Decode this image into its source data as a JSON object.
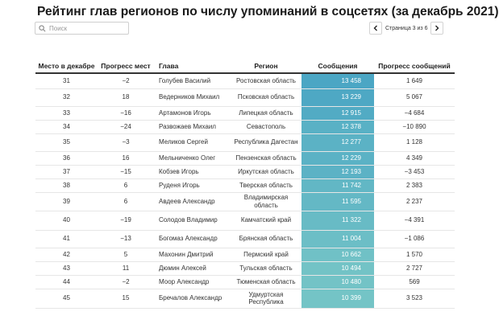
{
  "title": "Рейтинг глав регионов по числу упоминаний в соцсетях (за декабрь 2021)",
  "search": {
    "placeholder": "Поиск",
    "value": ""
  },
  "pagination": {
    "label": "Страница 3 из 6"
  },
  "icons": {
    "search": "search-icon",
    "prev": "chevron-left-icon",
    "next": "chevron-right-icon"
  },
  "colors": {
    "heat_high": "#4ba6c4",
    "heat_low": "#74c4c6"
  },
  "columns": [
    "Место в декабре",
    "Прогресс мест",
    "Глава",
    "Регион",
    "Сообщения",
    "Прогресс сообщений"
  ],
  "rows": [
    {
      "place": "31",
      "progress": "−2",
      "name": "Голубев Василий",
      "region": "Ростовская область",
      "messages": "13 458",
      "msg_value": 13458,
      "msg_progress": "1 649"
    },
    {
      "place": "32",
      "progress": "18",
      "name": "Ведерников Михаил",
      "region": "Псковская область",
      "messages": "13 229",
      "msg_value": 13229,
      "msg_progress": "5 067"
    },
    {
      "place": "33",
      "progress": "−16",
      "name": "Артамонов Игорь",
      "region": "Липецкая область",
      "messages": "12 915",
      "msg_value": 12915,
      "msg_progress": "−4 684"
    },
    {
      "place": "34",
      "progress": "−24",
      "name": "Развожаев Михаил",
      "region": "Севастополь",
      "messages": "12 378",
      "msg_value": 12378,
      "msg_progress": "−10 890"
    },
    {
      "place": "35",
      "progress": "−3",
      "name": "Меликов Сергей",
      "region": "Республика Дагестан",
      "messages": "12 277",
      "msg_value": 12277,
      "msg_progress": "1 128"
    },
    {
      "place": "36",
      "progress": "16",
      "name": "Мельниченко Олег",
      "region": "Пензенская область",
      "messages": "12 229",
      "msg_value": 12229,
      "msg_progress": "4 349"
    },
    {
      "place": "37",
      "progress": "−15",
      "name": "Кобзев Игорь",
      "region": "Иркутская область",
      "messages": "12 193",
      "msg_value": 12193,
      "msg_progress": "−3 453"
    },
    {
      "place": "38",
      "progress": "6",
      "name": "Руденя Игорь",
      "region": "Тверская область",
      "messages": "11 742",
      "msg_value": 11742,
      "msg_progress": "2 383"
    },
    {
      "place": "39",
      "progress": "6",
      "name": "Авдеев Александр",
      "region": "Владимирская область",
      "messages": "11 595",
      "msg_value": 11595,
      "msg_progress": "2 237"
    },
    {
      "place": "40",
      "progress": "−19",
      "name": "Солодов Владимир",
      "region": "Камчатский край",
      "messages": "11 322",
      "msg_value": 11322,
      "msg_progress": "−4 391"
    },
    {
      "place": "41",
      "progress": "−13",
      "name": "Богомаз Александр",
      "region": "Брянская область",
      "messages": "11 004",
      "msg_value": 11004,
      "msg_progress": "−1 086"
    },
    {
      "place": "42",
      "progress": "5",
      "name": "Махонин Дмитрий",
      "region": "Пермский край",
      "messages": "10 662",
      "msg_value": 10662,
      "msg_progress": "1 570"
    },
    {
      "place": "43",
      "progress": "11",
      "name": "Дюмин Алексей",
      "region": "Тульская область",
      "messages": "10 494",
      "msg_value": 10494,
      "msg_progress": "2 727"
    },
    {
      "place": "44",
      "progress": "−2",
      "name": "Моор Александр",
      "region": "Тюменская область",
      "messages": "10 480",
      "msg_value": 10480,
      "msg_progress": "569"
    },
    {
      "place": "45",
      "progress": "15",
      "name": "Бречалов Александр",
      "region": "Удмуртская Республика",
      "messages": "10 399",
      "msg_value": 10399,
      "msg_progress": "3 523"
    }
  ]
}
